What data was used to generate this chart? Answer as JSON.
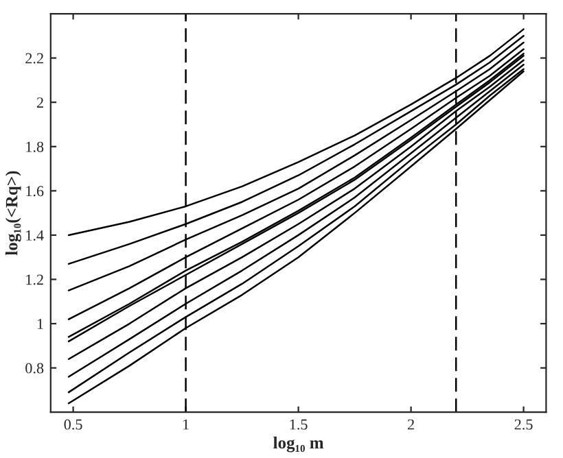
{
  "chart_data": {
    "type": "line",
    "xlabel": "log₁₀ m",
    "ylabel": "log₁₀(<Rq>)",
    "x": [
      0.48,
      0.75,
      1.0,
      1.25,
      1.5,
      1.75,
      2.0,
      2.2,
      2.35,
      2.5
    ],
    "series": [
      {
        "color": "#000000",
        "values": [
          1.4,
          1.46,
          1.53,
          1.62,
          1.73,
          1.85,
          1.99,
          2.11,
          2.21,
          2.33
        ]
      },
      {
        "color": "#000000",
        "values": [
          1.27,
          1.36,
          1.45,
          1.55,
          1.67,
          1.81,
          1.96,
          2.08,
          2.18,
          2.3
        ]
      },
      {
        "color": "#000000",
        "values": [
          1.15,
          1.26,
          1.38,
          1.49,
          1.61,
          1.76,
          1.92,
          2.05,
          2.15,
          2.27
        ]
      },
      {
        "color": "#000000",
        "values": [
          1.02,
          1.16,
          1.3,
          1.43,
          1.56,
          1.71,
          1.88,
          2.02,
          2.12,
          2.24
        ]
      },
      {
        "color": "#000000",
        "values": [
          0.94,
          1.09,
          1.24,
          1.37,
          1.51,
          1.66,
          1.84,
          1.99,
          2.1,
          2.22
        ]
      },
      {
        "color": "#000000",
        "values": [
          0.92,
          1.08,
          1.22,
          1.36,
          1.5,
          1.65,
          1.83,
          1.98,
          2.09,
          2.21
        ]
      },
      {
        "color": "#000000",
        "values": [
          0.84,
          1.0,
          1.16,
          1.3,
          1.45,
          1.61,
          1.8,
          1.96,
          2.07,
          2.19
        ]
      },
      {
        "color": "#000000",
        "values": [
          0.76,
          0.93,
          1.09,
          1.24,
          1.4,
          1.57,
          1.77,
          1.93,
          2.05,
          2.17
        ]
      },
      {
        "color": "#000000",
        "values": [
          0.69,
          0.87,
          1.03,
          1.18,
          1.35,
          1.53,
          1.74,
          1.9,
          2.03,
          2.15
        ]
      },
      {
        "color": "#000000",
        "values": [
          0.64,
          0.81,
          0.98,
          1.13,
          1.3,
          1.5,
          1.71,
          1.88,
          2.01,
          2.14
        ]
      }
    ],
    "xlim": [
      0.4,
      2.6
    ],
    "ylim": [
      0.6,
      2.4
    ],
    "xticks": [
      0.5,
      1,
      1.5,
      2,
      2.5
    ],
    "yticks": [
      0.8,
      1,
      1.2,
      1.4,
      1.6,
      1.8,
      2,
      2.2
    ],
    "ref_lines": [
      {
        "axis": "x",
        "value": 1,
        "color": "#000000",
        "line_style": "dashed"
      },
      {
        "axis": "x",
        "value": 2.2,
        "color": "#000000",
        "line_style": "dashed"
      }
    ],
    "grid": false,
    "legend": false,
    "marker": "none",
    "line_style": "solid"
  }
}
